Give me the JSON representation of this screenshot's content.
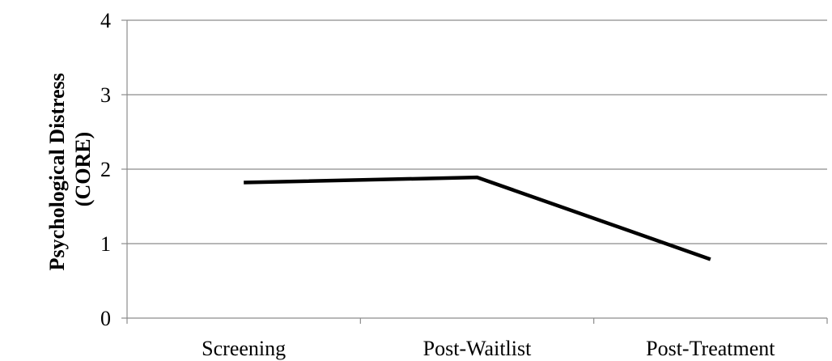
{
  "chart_data": {
    "type": "line",
    "title": "",
    "xlabel": "",
    "ylabel_lines": [
      "Psychological Distress",
      "(CORE)"
    ],
    "categories": [
      "Screening",
      "Post-Waitlist",
      "Post-Treatment"
    ],
    "series": [
      {
        "values": [
          1.82,
          1.89,
          0.79
        ],
        "color": "#000000"
      }
    ],
    "ylim": [
      0,
      4
    ],
    "yticks": [
      0,
      1,
      2,
      3,
      4
    ],
    "grid": true,
    "legend": "none"
  }
}
